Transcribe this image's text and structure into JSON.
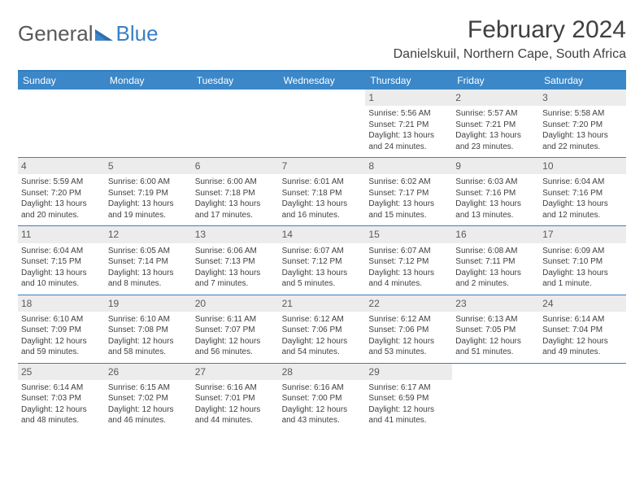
{
  "logo": {
    "text1": "General",
    "text2": "Blue"
  },
  "title": "February 2024",
  "location": "Danielskuil, Northern Cape, South Africa",
  "colors": {
    "header_bg": "#3b87c8",
    "header_text": "#ffffff",
    "border": "#3b7fc4",
    "daynum_bg": "#ececec",
    "body_text": "#404040"
  },
  "day_names": [
    "Sunday",
    "Monday",
    "Tuesday",
    "Wednesday",
    "Thursday",
    "Friday",
    "Saturday"
  ],
  "weeks": [
    [
      null,
      null,
      null,
      null,
      {
        "n": "1",
        "sunrise": "5:56 AM",
        "sunset": "7:21 PM",
        "daylight": "13 hours and 24 minutes."
      },
      {
        "n": "2",
        "sunrise": "5:57 AM",
        "sunset": "7:21 PM",
        "daylight": "13 hours and 23 minutes."
      },
      {
        "n": "3",
        "sunrise": "5:58 AM",
        "sunset": "7:20 PM",
        "daylight": "13 hours and 22 minutes."
      }
    ],
    [
      {
        "n": "4",
        "sunrise": "5:59 AM",
        "sunset": "7:20 PM",
        "daylight": "13 hours and 20 minutes."
      },
      {
        "n": "5",
        "sunrise": "6:00 AM",
        "sunset": "7:19 PM",
        "daylight": "13 hours and 19 minutes."
      },
      {
        "n": "6",
        "sunrise": "6:00 AM",
        "sunset": "7:18 PM",
        "daylight": "13 hours and 17 minutes."
      },
      {
        "n": "7",
        "sunrise": "6:01 AM",
        "sunset": "7:18 PM",
        "daylight": "13 hours and 16 minutes."
      },
      {
        "n": "8",
        "sunrise": "6:02 AM",
        "sunset": "7:17 PM",
        "daylight": "13 hours and 15 minutes."
      },
      {
        "n": "9",
        "sunrise": "6:03 AM",
        "sunset": "7:16 PM",
        "daylight": "13 hours and 13 minutes."
      },
      {
        "n": "10",
        "sunrise": "6:04 AM",
        "sunset": "7:16 PM",
        "daylight": "13 hours and 12 minutes."
      }
    ],
    [
      {
        "n": "11",
        "sunrise": "6:04 AM",
        "sunset": "7:15 PM",
        "daylight": "13 hours and 10 minutes."
      },
      {
        "n": "12",
        "sunrise": "6:05 AM",
        "sunset": "7:14 PM",
        "daylight": "13 hours and 8 minutes."
      },
      {
        "n": "13",
        "sunrise": "6:06 AM",
        "sunset": "7:13 PM",
        "daylight": "13 hours and 7 minutes."
      },
      {
        "n": "14",
        "sunrise": "6:07 AM",
        "sunset": "7:12 PM",
        "daylight": "13 hours and 5 minutes."
      },
      {
        "n": "15",
        "sunrise": "6:07 AM",
        "sunset": "7:12 PM",
        "daylight": "13 hours and 4 minutes."
      },
      {
        "n": "16",
        "sunrise": "6:08 AM",
        "sunset": "7:11 PM",
        "daylight": "13 hours and 2 minutes."
      },
      {
        "n": "17",
        "sunrise": "6:09 AM",
        "sunset": "7:10 PM",
        "daylight": "13 hours and 1 minute."
      }
    ],
    [
      {
        "n": "18",
        "sunrise": "6:10 AM",
        "sunset": "7:09 PM",
        "daylight": "12 hours and 59 minutes."
      },
      {
        "n": "19",
        "sunrise": "6:10 AM",
        "sunset": "7:08 PM",
        "daylight": "12 hours and 58 minutes."
      },
      {
        "n": "20",
        "sunrise": "6:11 AM",
        "sunset": "7:07 PM",
        "daylight": "12 hours and 56 minutes."
      },
      {
        "n": "21",
        "sunrise": "6:12 AM",
        "sunset": "7:06 PM",
        "daylight": "12 hours and 54 minutes."
      },
      {
        "n": "22",
        "sunrise": "6:12 AM",
        "sunset": "7:06 PM",
        "daylight": "12 hours and 53 minutes."
      },
      {
        "n": "23",
        "sunrise": "6:13 AM",
        "sunset": "7:05 PM",
        "daylight": "12 hours and 51 minutes."
      },
      {
        "n": "24",
        "sunrise": "6:14 AM",
        "sunset": "7:04 PM",
        "daylight": "12 hours and 49 minutes."
      }
    ],
    [
      {
        "n": "25",
        "sunrise": "6:14 AM",
        "sunset": "7:03 PM",
        "daylight": "12 hours and 48 minutes."
      },
      {
        "n": "26",
        "sunrise": "6:15 AM",
        "sunset": "7:02 PM",
        "daylight": "12 hours and 46 minutes."
      },
      {
        "n": "27",
        "sunrise": "6:16 AM",
        "sunset": "7:01 PM",
        "daylight": "12 hours and 44 minutes."
      },
      {
        "n": "28",
        "sunrise": "6:16 AM",
        "sunset": "7:00 PM",
        "daylight": "12 hours and 43 minutes."
      },
      {
        "n": "29",
        "sunrise": "6:17 AM",
        "sunset": "6:59 PM",
        "daylight": "12 hours and 41 minutes."
      },
      null,
      null
    ]
  ]
}
